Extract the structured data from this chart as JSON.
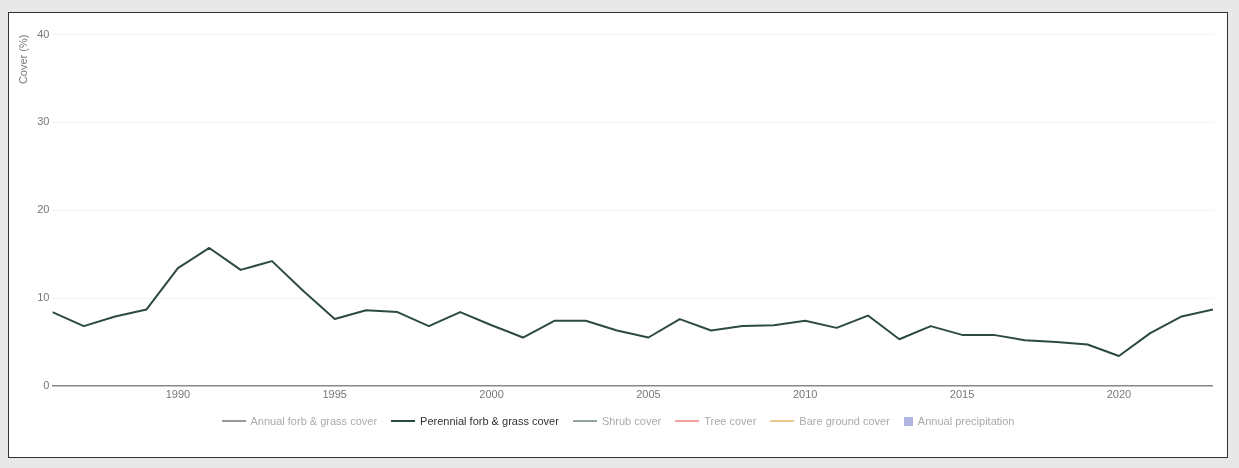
{
  "chart_data": {
    "type": "line",
    "ylabel": "Cover (%)",
    "x": [
      1986,
      1987,
      1988,
      1989,
      1990,
      1991,
      1992,
      1993,
      1994,
      1995,
      1996,
      1997,
      1998,
      1999,
      2000,
      2001,
      2002,
      2003,
      2004,
      2005,
      2006,
      2007,
      2008,
      2009,
      2010,
      2011,
      2012,
      2013,
      2014,
      2015,
      2016,
      2017,
      2018,
      2019,
      2020,
      2021,
      2022,
      2023
    ],
    "series": [
      {
        "name": "Annual forb & grass cover",
        "color": "#999999",
        "values": [
          null,
          null,
          null,
          null,
          null,
          null,
          null,
          null,
          null,
          null,
          null,
          null,
          null,
          null,
          null,
          null,
          null,
          null,
          null,
          null,
          null,
          null,
          null,
          null,
          null,
          null,
          null,
          null,
          null,
          null,
          null,
          null,
          null,
          null,
          null,
          null,
          null,
          null
        ]
      },
      {
        "name": "Perennial forb & grass cover",
        "color": "#2d4a40",
        "values": [
          8.4,
          6.8,
          7.9,
          8.7,
          13.4,
          15.7,
          13.2,
          14.2,
          10.8,
          7.6,
          8.6,
          8.4,
          6.8,
          8.4,
          6.9,
          5.5,
          7.4,
          7.4,
          6.3,
          5.5,
          7.6,
          6.3,
          6.8,
          6.9,
          7.4,
          6.6,
          8.0,
          5.3,
          6.8,
          5.8,
          5.8,
          5.2,
          5.0,
          4.7,
          3.4,
          6.0,
          7.9,
          8.7
        ]
      },
      {
        "name": "Shrub cover",
        "color": "#8fa3a0",
        "values": [
          null,
          null,
          null,
          null,
          null,
          null,
          null,
          null,
          null,
          null,
          null,
          null,
          null,
          null,
          null,
          null,
          null,
          null,
          null,
          null,
          null,
          null,
          null,
          null,
          null,
          null,
          null,
          null,
          null,
          null,
          null,
          null,
          null,
          null,
          null,
          null,
          null,
          null
        ]
      },
      {
        "name": "Tree cover",
        "color": "#f0a0a0",
        "values": [
          null,
          null,
          null,
          null,
          null,
          null,
          null,
          null,
          null,
          null,
          null,
          null,
          null,
          null,
          null,
          null,
          null,
          null,
          null,
          null,
          null,
          null,
          null,
          null,
          null,
          null,
          null,
          null,
          null,
          null,
          null,
          null,
          null,
          null,
          null,
          null,
          null,
          null
        ]
      },
      {
        "name": "Bare ground cover",
        "color": "#e8c890",
        "values": [
          null,
          null,
          null,
          null,
          null,
          null,
          null,
          null,
          null,
          null,
          null,
          null,
          null,
          null,
          null,
          null,
          null,
          null,
          null,
          null,
          null,
          null,
          null,
          null,
          null,
          null,
          null,
          null,
          null,
          null,
          null,
          null,
          null,
          null,
          null,
          null,
          null,
          null
        ]
      },
      {
        "name": "Annual precipitation",
        "type": "bar",
        "color": "#b0b4e0",
        "values": [
          null,
          null,
          null,
          null,
          null,
          null,
          null,
          null,
          null,
          null,
          null,
          null,
          null,
          null,
          null,
          null,
          null,
          null,
          null,
          null,
          null,
          null,
          null,
          null,
          null,
          null,
          null,
          null,
          null,
          null,
          null,
          null,
          null,
          null,
          null,
          null,
          null,
          null
        ]
      }
    ],
    "xlim": [
      1986,
      2023
    ],
    "xticks": [
      1990,
      1995,
      2000,
      2005,
      2010,
      2015,
      2020
    ],
    "ylim": [
      0,
      40
    ],
    "yticks": [
      0,
      10,
      20,
      30,
      40
    ],
    "grid": "y",
    "legend": "bottom",
    "marker": "none",
    "line_style": "solid"
  }
}
